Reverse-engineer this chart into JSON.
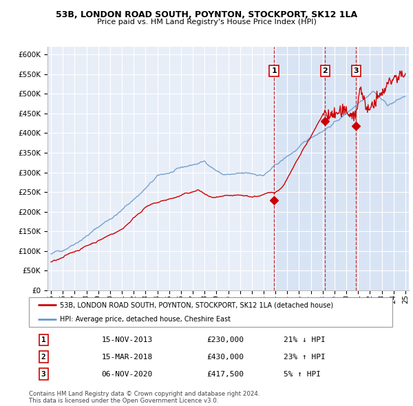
{
  "title1": "53B, LONDON ROAD SOUTH, POYNTON, STOCKPORT, SK12 1LA",
  "title2": "Price paid vs. HM Land Registry's House Price Index (HPI)",
  "bg_color": "#e8eef8",
  "sale_color": "#cc0000",
  "hpi_color": "#6699cc",
  "vline_color": "#cc0000",
  "shade_color": "#d8e4f4",
  "sales": [
    {
      "date": 2013.88,
      "price": 230000,
      "label": "1"
    },
    {
      "date": 2018.21,
      "price": 430000,
      "label": "2"
    },
    {
      "date": 2020.84,
      "price": 417500,
      "label": "3"
    }
  ],
  "legend_sale": "53B, LONDON ROAD SOUTH, POYNTON, STOCKPORT, SK12 1LA (detached house)",
  "legend_hpi": "HPI: Average price, detached house, Cheshire East",
  "table": [
    {
      "num": "1",
      "date": "15-NOV-2013",
      "price": "£230,000",
      "pct": "21% ↓ HPI"
    },
    {
      "num": "2",
      "date": "15-MAR-2018",
      "price": "£430,000",
      "pct": "23% ↑ HPI"
    },
    {
      "num": "3",
      "date": "06-NOV-2020",
      "price": "£417,500",
      "pct": "5% ↑ HPI"
    }
  ],
  "footer1": "Contains HM Land Registry data © Crown copyright and database right 2024.",
  "footer2": "This data is licensed under the Open Government Licence v3.0.",
  "yticks": [
    0,
    50000,
    100000,
    150000,
    200000,
    250000,
    300000,
    350000,
    400000,
    450000,
    500000,
    550000,
    600000
  ],
  "xlim": [
    1994.7,
    2025.3
  ],
  "ylim": [
    0,
    620000
  ]
}
